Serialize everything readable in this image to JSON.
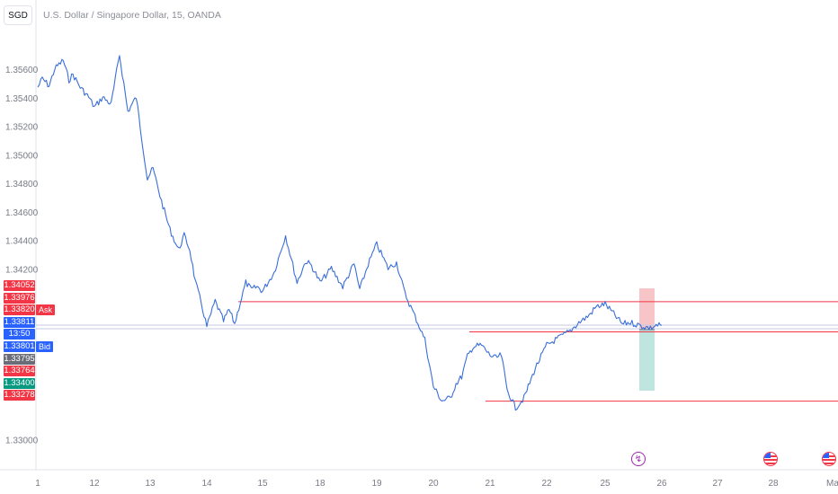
{
  "symbol_button": "SGD",
  "title": "U.S. Dollar / Singapore Dollar, 15, OANDA",
  "colors": {
    "line": "#3a6fd8",
    "red": "#f23645",
    "blue": "#2962ff",
    "green": "#089981",
    "gray": "#6a6d78",
    "short_zone": "#f7c4c7",
    "long_zone": "#bfe5e0"
  },
  "y_ticks": [
    "1.35600",
    "1.35400",
    "1.35200",
    "1.35000",
    "1.34800",
    "1.34600",
    "1.34400",
    "1.34200",
    "1.33000"
  ],
  "x_ticks": [
    "1",
    "12",
    "13",
    "14",
    "15",
    "18",
    "19",
    "20",
    "21",
    "22",
    "25",
    "26",
    "27",
    "28",
    "Ma"
  ],
  "price_labels": [
    {
      "text": "1.34052",
      "color": "red"
    },
    {
      "text": "1.33976",
      "color": "red"
    },
    {
      "text": "1.33820",
      "color": "red",
      "tag": "Ask"
    },
    {
      "text": "1.33811",
      "color": "blue"
    },
    {
      "text": "13:50",
      "color": "blue"
    },
    {
      "text": "1.33801",
      "color": "blue",
      "tag": "Bid"
    },
    {
      "text": "1.33795",
      "color": "gray"
    },
    {
      "text": "1.33764",
      "color": "red"
    },
    {
      "text": "1.33400",
      "color": "green"
    },
    {
      "text": "1.33278",
      "color": "red"
    }
  ],
  "horizontal_levels": [
    1.33976,
    1.33764,
    1.33278
  ],
  "chart_data": {
    "type": "line",
    "title": "U.S. Dollar / Singapore Dollar, 15, OANDA",
    "x_ticks": [
      "1",
      "12",
      "13",
      "14",
      "15",
      "18",
      "19",
      "20",
      "21",
      "22",
      "25",
      "26",
      "27",
      "28",
      "Ma"
    ],
    "ylim": [
      1.3291,
      1.3584
    ],
    "grid": false,
    "series": [
      {
        "x": [
          0,
          0.08,
          0.2,
          0.3,
          0.45,
          0.55,
          0.62,
          0.75,
          0.9,
          1.0,
          1.15,
          1.3,
          1.45,
          1.6,
          1.75,
          1.85,
          1.9,
          1.95,
          2.05,
          2.2,
          2.35,
          2.5,
          2.6,
          2.7,
          2.8,
          2.9,
          3.0,
          3.15,
          3.3,
          3.4,
          3.5,
          3.6,
          3.7,
          3.8,
          3.9,
          4.0,
          4.2,
          4.4,
          4.6,
          4.75,
          4.85,
          5.0,
          5.2,
          5.4,
          5.6,
          5.7,
          5.85,
          6.0,
          6.2,
          6.35,
          6.5,
          6.7,
          6.85,
          7.0,
          7.15,
          7.3,
          7.4,
          7.5,
          7.6,
          7.7,
          7.85,
          8.0,
          8.1,
          8.2,
          8.3,
          8.45,
          8.6,
          8.8,
          9.0,
          9.2,
          9.4,
          9.55,
          9.7,
          9.85,
          10.0,
          10.15,
          10.3,
          10.45,
          10.6,
          10.7,
          10.8,
          10.9,
          11.0
        ],
        "y": [
          1.3548,
          1.3554,
          1.3549,
          1.3561,
          1.3567,
          1.3553,
          1.3557,
          1.3548,
          1.3541,
          1.3534,
          1.3541,
          1.3536,
          1.3571,
          1.3531,
          1.3541,
          1.3512,
          1.3498,
          1.3484,
          1.3491,
          1.3468,
          1.3448,
          1.3434,
          1.3444,
          1.3434,
          1.3411,
          1.3397,
          1.338,
          1.3398,
          1.3384,
          1.3392,
          1.3382,
          1.3397,
          1.3411,
          1.3406,
          1.3408,
          1.3405,
          1.3418,
          1.3444,
          1.3411,
          1.3426,
          1.3423,
          1.3411,
          1.3421,
          1.3408,
          1.3424,
          1.3406,
          1.3424,
          1.3438,
          1.3421,
          1.3425,
          1.3403,
          1.3385,
          1.3371,
          1.3338,
          1.3328,
          1.333,
          1.334,
          1.3345,
          1.3359,
          1.3366,
          1.3367,
          1.336,
          1.3358,
          1.336,
          1.3336,
          1.3323,
          1.333,
          1.3351,
          1.3367,
          1.3372,
          1.3377,
          1.3383,
          1.3387,
          1.3394,
          1.3396,
          1.3389,
          1.3382,
          1.3383,
          1.3381,
          1.338,
          1.3379,
          1.3381,
          1.3381
        ]
      }
    ]
  }
}
